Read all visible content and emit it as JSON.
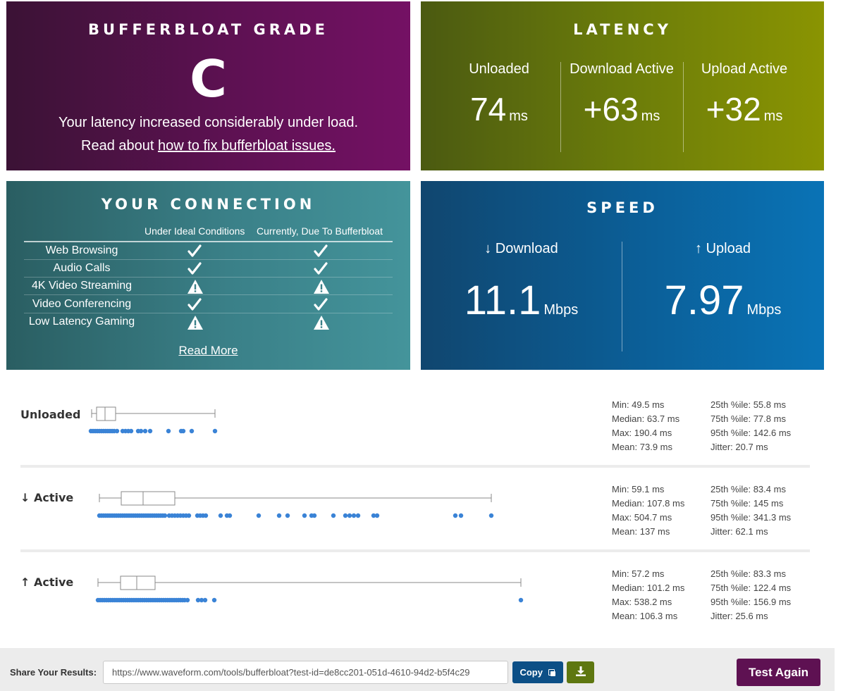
{
  "grade": {
    "title": "BUFFERBLOAT GRADE",
    "letter": "C",
    "line1": "Your latency increased considerably under load.",
    "line2_prefix": "Read about ",
    "line2_link": "how to fix bufferbloat issues."
  },
  "latency": {
    "title": "LATENCY",
    "columns": [
      {
        "label": "Unloaded",
        "value": "74",
        "unit": "ms"
      },
      {
        "label": "Download Active",
        "value": "+63",
        "unit": "ms"
      },
      {
        "label": "Upload Active",
        "value": "+32",
        "unit": "ms"
      }
    ]
  },
  "connection": {
    "title": "YOUR CONNECTION",
    "col_ideal": "Under Ideal Conditions",
    "col_current": "Currently, Due To Bufferbloat",
    "rows": [
      {
        "label": "Web Browsing",
        "ideal": "check",
        "current": "check"
      },
      {
        "label": "Audio Calls",
        "ideal": "check",
        "current": "check"
      },
      {
        "label": "4K Video Streaming",
        "ideal": "warning",
        "current": "warning"
      },
      {
        "label": "Video Conferencing",
        "ideal": "check",
        "current": "check"
      },
      {
        "label": "Low Latency Gaming",
        "ideal": "warning",
        "current": "warning"
      }
    ],
    "read_more": "Read More"
  },
  "speed": {
    "title": "SPEED",
    "download": {
      "label": "↓ Download",
      "value": "11.1",
      "unit": "Mbps"
    },
    "upload": {
      "label": "↑ Upload",
      "value": "7.97",
      "unit": "Mbps"
    }
  },
  "distributions": [
    {
      "label": "Unloaded",
      "stats_left": [
        "Min: 49.5 ms",
        "Median: 63.7 ms",
        "Max: 190.4 ms",
        "Mean: 73.9 ms"
      ],
      "stats_right": [
        "25th %ile: 55.8 ms",
        "75th %ile: 77.8 ms",
        "95th %ile: 142.6 ms",
        "Jitter: 20.7 ms"
      ]
    },
    {
      "label": "↓ Active",
      "stats_left": [
        "Min: 59.1 ms",
        "Median: 107.8 ms",
        "Max: 504.7 ms",
        "Mean: 137 ms"
      ],
      "stats_right": [
        "25th %ile: 83.4 ms",
        "75th %ile: 145 ms",
        "95th %ile: 341.3 ms",
        "Jitter: 62.1 ms"
      ]
    },
    {
      "label": "↑ Active",
      "stats_left": [
        "Min: 57.2 ms",
        "Median: 101.2 ms",
        "Max: 538.2 ms",
        "Mean: 106.3 ms"
      ],
      "stats_right": [
        "25th %ile: 83.3 ms",
        "75th %ile: 122.4 ms",
        "95th %ile: 156.9 ms",
        "Jitter: 25.6 ms"
      ]
    }
  ],
  "share": {
    "label": "Share Your Results:",
    "url": "https://www.waveform.com/tools/bufferbloat?test-id=de8cc201-051d-4610-94d2-b5f4c29",
    "copy_label": "Copy",
    "download_icon": "download-icon",
    "test_again": "Test Again"
  },
  "colors": {
    "grade_bg": "#5d1152",
    "latency_bg": "#6b7c0a",
    "connection_bg": "#3a8088",
    "speed_bg": "#0b5f98",
    "dot": "#3a83d6"
  }
}
